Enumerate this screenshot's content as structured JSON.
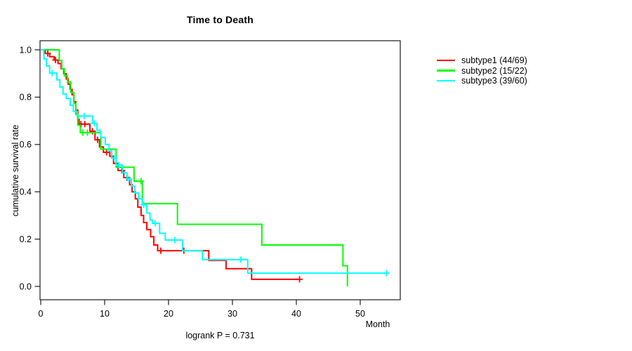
{
  "chart_data": {
    "type": "line",
    "variant": "kaplan-meier-step",
    "title": "Time to Death",
    "xlabel": "Month",
    "ylabel": "cumulative survival rate",
    "annotation": "logrank P = 0.731",
    "xlim": [
      0,
      56.3
    ],
    "ylim": [
      0,
      1
    ],
    "xticks": [
      0,
      10,
      20,
      30,
      40,
      50
    ],
    "yticks": [
      0,
      0.2,
      0.4,
      0.6,
      0.8,
      1
    ],
    "ytick_labels": [
      "0.0",
      "0.2",
      "0.4",
      "0.6",
      "0.8",
      "1.0"
    ],
    "grid": false,
    "legend_position": "right-outside",
    "series": [
      {
        "name": "subtype1",
        "label": "subtype1 (44/69)",
        "color": "#ff0000",
        "points": [
          [
            0,
            1
          ],
          [
            0.7,
            0.985
          ],
          [
            1.4,
            0.971
          ],
          [
            2.1,
            0.957
          ],
          [
            2.7,
            0.942
          ],
          [
            3.2,
            0.92
          ],
          [
            3.6,
            0.899
          ],
          [
            4,
            0.877
          ],
          [
            4.3,
            0.855
          ],
          [
            4.6,
            0.833
          ],
          [
            4.9,
            0.81
          ],
          [
            5.2,
            0.78
          ],
          [
            5.5,
            0.745
          ],
          [
            5.8,
            0.706
          ],
          [
            6,
            0.686
          ],
          [
            7.7,
            0.656
          ],
          [
            8.5,
            0.62
          ],
          [
            9.2,
            0.59
          ],
          [
            9.8,
            0.567
          ],
          [
            10.8,
            0.55
          ],
          [
            11.4,
            0.52
          ],
          [
            12.1,
            0.49
          ],
          [
            13,
            0.46
          ],
          [
            13.9,
            0.43
          ],
          [
            14.3,
            0.4
          ],
          [
            14.8,
            0.37
          ],
          [
            15.2,
            0.335
          ],
          [
            15.7,
            0.3
          ],
          [
            16.1,
            0.27
          ],
          [
            16.6,
            0.24
          ],
          [
            17.2,
            0.21
          ],
          [
            17.7,
            0.175
          ],
          [
            18.3,
            0.151
          ],
          [
            26.3,
            0.11
          ],
          [
            29,
            0.075
          ],
          [
            33,
            0.03
          ],
          [
            40.5,
            0.03
          ]
        ],
        "censors": [
          [
            1.1,
            0.985
          ],
          [
            2.3,
            0.957
          ],
          [
            6.3,
            0.686
          ],
          [
            6.9,
            0.686
          ],
          [
            8.1,
            0.656
          ],
          [
            8.9,
            0.62
          ],
          [
            10.3,
            0.567
          ],
          [
            11.8,
            0.52
          ],
          [
            12.7,
            0.49
          ],
          [
            13.5,
            0.46
          ],
          [
            18.8,
            0.151
          ],
          [
            22.4,
            0.151
          ],
          [
            40.5,
            0.03
          ]
        ]
      },
      {
        "name": "subtype2",
        "label": "subtype2 (15/22)",
        "color": "#00ff00",
        "points": [
          [
            0,
            1
          ],
          [
            2.9,
            0.955
          ],
          [
            3.3,
            0.92
          ],
          [
            3.7,
            0.89
          ],
          [
            4.2,
            0.864
          ],
          [
            4.7,
            0.82
          ],
          [
            5.2,
            0.773
          ],
          [
            5.5,
            0.727
          ],
          [
            5.8,
            0.682
          ],
          [
            6.2,
            0.65
          ],
          [
            9.4,
            0.58
          ],
          [
            11.8,
            0.504
          ],
          [
            14.6,
            0.445
          ],
          [
            15.9,
            0.35
          ],
          [
            21.4,
            0.2625
          ],
          [
            34.6,
            0.175
          ],
          [
            47.3,
            0.0875
          ],
          [
            48,
            0
          ]
        ],
        "censors": [
          [
            6.6,
            0.65
          ],
          [
            7.3,
            0.65
          ],
          [
            15.7,
            0.445
          ]
        ]
      },
      {
        "name": "subtype3",
        "label": "subtype3 (39/60)",
        "color": "#00ffff",
        "points": [
          [
            0,
            1
          ],
          [
            0.5,
            0.962
          ],
          [
            0.9,
            0.932
          ],
          [
            1.4,
            0.902
          ],
          [
            2.5,
            0.873
          ],
          [
            3,
            0.843
          ],
          [
            3.5,
            0.813
          ],
          [
            4,
            0.795
          ],
          [
            4.6,
            0.766
          ],
          [
            5.1,
            0.74
          ],
          [
            5.7,
            0.72
          ],
          [
            8.1,
            0.69
          ],
          [
            8.8,
            0.66
          ],
          [
            9.4,
            0.63
          ],
          [
            10.1,
            0.6
          ],
          [
            10.7,
            0.573
          ],
          [
            11.1,
            0.543
          ],
          [
            11.8,
            0.513
          ],
          [
            12.8,
            0.48
          ],
          [
            13.5,
            0.454
          ],
          [
            14.2,
            0.424
          ],
          [
            14.7,
            0.395
          ],
          [
            15.3,
            0.37
          ],
          [
            15.9,
            0.345
          ],
          [
            16.6,
            0.31
          ],
          [
            17.1,
            0.28
          ],
          [
            17.5,
            0.267
          ],
          [
            18.6,
            0.225
          ],
          [
            19.5,
            0.196
          ],
          [
            22.2,
            0.151
          ],
          [
            25.3,
            0.113
          ],
          [
            32.4,
            0.056
          ],
          [
            54.5,
            0.056
          ]
        ],
        "censors": [
          [
            1.8,
            0.902
          ],
          [
            6.8,
            0.72
          ],
          [
            8.4,
            0.69
          ],
          [
            11.5,
            0.543
          ],
          [
            12.2,
            0.513
          ],
          [
            13.8,
            0.454
          ],
          [
            16.1,
            0.345
          ],
          [
            17.9,
            0.267
          ],
          [
            21,
            0.196
          ],
          [
            31.3,
            0.113
          ],
          [
            54.1,
            0.056
          ]
        ]
      }
    ]
  }
}
